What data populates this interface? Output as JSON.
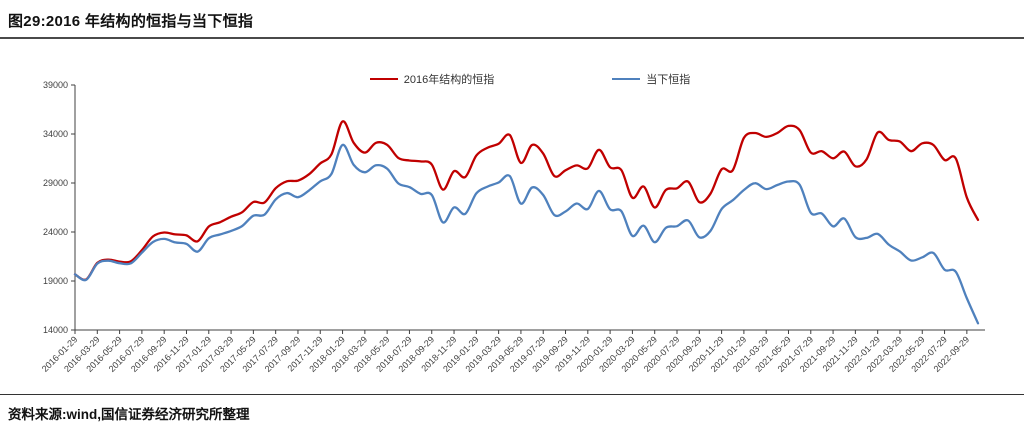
{
  "header": {
    "title": "图29:2016 年结构的恒指与当下恒指"
  },
  "legend": {
    "series1": "2016年结构的恒指",
    "series2": "当下恒指"
  },
  "footer": {
    "source": "资料来源:wind,国信证券经济研究所整理"
  },
  "colors": {
    "series1": "#C00000",
    "series2": "#4F81BD",
    "axis": "#404040"
  },
  "chart_data": {
    "type": "line",
    "title": "图29:2016 年结构的恒指与当下恒指",
    "grid": false,
    "legend_position": "top",
    "ylim": [
      14000,
      39000
    ],
    "yticks": [
      14000,
      19000,
      24000,
      29000,
      34000,
      39000
    ],
    "x": [
      "2016-01",
      "2016-02",
      "2016-03",
      "2016-04",
      "2016-05",
      "2016-06",
      "2016-07",
      "2016-08",
      "2016-09",
      "2016-10",
      "2016-11",
      "2016-12",
      "2017-01",
      "2017-02",
      "2017-03",
      "2017-04",
      "2017-05",
      "2017-06",
      "2017-07",
      "2017-08",
      "2017-09",
      "2017-10",
      "2017-11",
      "2017-12",
      "2018-01",
      "2018-02",
      "2018-03",
      "2018-04",
      "2018-05",
      "2018-06",
      "2018-07",
      "2018-08",
      "2018-09",
      "2018-10",
      "2018-11",
      "2018-12",
      "2019-01",
      "2019-02",
      "2019-03",
      "2019-04",
      "2019-05",
      "2019-06",
      "2019-07",
      "2019-08",
      "2019-09",
      "2019-10",
      "2019-11",
      "2019-12",
      "2020-01",
      "2020-02",
      "2020-03",
      "2020-04",
      "2020-05",
      "2020-06",
      "2020-07",
      "2020-08",
      "2020-09",
      "2020-10",
      "2020-11",
      "2020-12",
      "2021-01",
      "2021-02",
      "2021-03",
      "2021-04",
      "2021-05",
      "2021-06",
      "2021-07",
      "2021-08",
      "2021-09",
      "2021-10",
      "2021-11",
      "2021-12",
      "2022-01",
      "2022-02",
      "2022-03",
      "2022-04",
      "2022-05",
      "2022-06",
      "2022-07",
      "2022-08",
      "2022-09",
      "2022-10"
    ],
    "xtick_labels": [
      "2016-01-29",
      "2016-03-29",
      "2016-05-29",
      "2016-07-29",
      "2016-09-29",
      "2016-11-29",
      "2017-01-29",
      "2017-03-29",
      "2017-05-29",
      "2017-07-29",
      "2017-09-29",
      "2017-11-29",
      "2018-01-29",
      "2018-03-29",
      "2018-05-29",
      "2018-07-29",
      "2018-09-29",
      "2018-11-29",
      "2019-01-29",
      "2019-03-29",
      "2019-05-29",
      "2019-07-29",
      "2019-09-29",
      "2019-11-29",
      "2020-01-29",
      "2020-03-29",
      "2020-05-29",
      "2020-07-29",
      "2020-09-29",
      "2020-11-29",
      "2021-01-29",
      "2021-03-29",
      "2021-05-29",
      "2021-07-29",
      "2021-09-29",
      "2021-11-29",
      "2022-01-29",
      "2022-03-29",
      "2022-05-29",
      "2022-07-29",
      "2022-09-29"
    ],
    "series": [
      {
        "name": "2016年结构的恒指",
        "color": "#C00000",
        "values": [
          19683,
          19150,
          20850,
          21180,
          20980,
          21000,
          22150,
          23550,
          23950,
          23750,
          23650,
          23050,
          24560,
          24990,
          25560,
          26020,
          27060,
          27010,
          28470,
          29170,
          29250,
          29900,
          31000,
          31920,
          35290,
          33100,
          32100,
          33100,
          32900,
          31560,
          31300,
          31200,
          30900,
          28330,
          30200,
          29600,
          31800,
          32600,
          33000,
          33900,
          31050,
          32890,
          32000,
          29700,
          30300,
          30800,
          30500,
          32390,
          30600,
          30330,
          27500,
          28640,
          26500,
          28300,
          28460,
          29140,
          27050,
          27900,
          30400,
          30300,
          33600,
          34100,
          33700,
          34100,
          34830,
          34400,
          32100,
          32250,
          31520,
          32200,
          30700,
          31400,
          34150,
          33400,
          33220,
          32250,
          33050,
          32880,
          31350,
          31520,
          27500,
          25230
        ]
      },
      {
        "name": "当下恒指",
        "color": "#4F81BD",
        "values": [
          19683,
          19112,
          20777,
          21067,
          20815,
          20794,
          21891,
          22977,
          23297,
          22935,
          22790,
          22001,
          23361,
          23741,
          24112,
          24615,
          25661,
          25765,
          27324,
          27970,
          27554,
          28246,
          29177,
          29919,
          32887,
          30845,
          30093,
          30808,
          30469,
          28955,
          28583,
          27889,
          27789,
          24980,
          26507,
          25846,
          27942,
          28633,
          29051,
          29699,
          26901,
          28543,
          27778,
          25725,
          26092,
          26907,
          26346,
          28190,
          26313,
          26130,
          23603,
          24644,
          22961,
          24427,
          24595,
          25177,
          23459,
          24107,
          26341,
          27231,
          28284,
          28980,
          28378,
          28800,
          29152,
          28828,
          25961,
          25879,
          24576,
          25377,
          23475,
          23398,
          23802,
          22713,
          21997,
          21089,
          21415,
          21860,
          20157,
          19954,
          17223,
          14687
        ]
      }
    ]
  }
}
